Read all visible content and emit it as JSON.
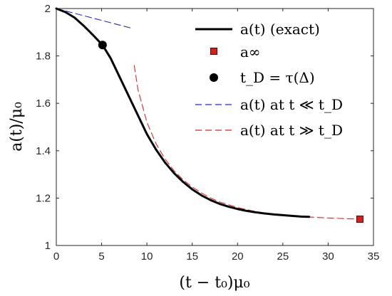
{
  "chart_data": {
    "type": "line",
    "xlabel": "(t − t₀)μ₀",
    "ylabel": "a(t)/μ₀",
    "xlim": [
      0,
      35
    ],
    "ylim": [
      1,
      2
    ],
    "x_ticks": [
      0,
      5,
      10,
      15,
      20,
      25,
      30,
      35
    ],
    "y_ticks": [
      1,
      1.2,
      1.4,
      1.6,
      1.8,
      2
    ],
    "grid": false,
    "legend_position": "top-right",
    "series": [
      {
        "name": "a(t) (exact)",
        "kind": "line",
        "color": "#000000",
        "style": "solid",
        "x": [
          0,
          1,
          2,
          3,
          4,
          5,
          5.1,
          6,
          7,
          8,
          9,
          10,
          11,
          12,
          13,
          14,
          15,
          16,
          17,
          18,
          19,
          20,
          21,
          22,
          23,
          24,
          25,
          26,
          27,
          27.9
        ],
        "y": [
          2.0,
          1.985,
          1.962,
          1.928,
          1.89,
          1.85,
          1.846,
          1.79,
          1.71,
          1.63,
          1.55,
          1.47,
          1.405,
          1.35,
          1.305,
          1.268,
          1.237,
          1.212,
          1.192,
          1.176,
          1.164,
          1.154,
          1.146,
          1.14,
          1.135,
          1.131,
          1.128,
          1.125,
          1.122,
          1.121
        ]
      },
      {
        "name": "a∞",
        "kind": "marker",
        "marker": "square",
        "color": "#d42020",
        "x": [
          33.5
        ],
        "y": [
          1.111
        ]
      },
      {
        "name": "t_D = τ(Δ)",
        "kind": "marker",
        "marker": "circle",
        "color": "#000000",
        "x": [
          5.1
        ],
        "y": [
          1.846
        ]
      },
      {
        "name": "a(t) at t ≪ t_D",
        "kind": "line",
        "color": "#1f28d6",
        "style": "dashed",
        "x": [
          0,
          8.5
        ],
        "y": [
          2.0,
          1.915
        ]
      },
      {
        "name": "a(t) at t ≫ t_D",
        "kind": "line",
        "color": "#e02424",
        "style": "dashed",
        "x": [
          8.6,
          9,
          10,
          11,
          12,
          13,
          14,
          15,
          16,
          17,
          18,
          20,
          22,
          24,
          26,
          28,
          30,
          32,
          33.5
        ],
        "y": [
          1.76,
          1.66,
          1.52,
          1.43,
          1.365,
          1.315,
          1.277,
          1.247,
          1.222,
          1.201,
          1.184,
          1.16,
          1.143,
          1.132,
          1.125,
          1.12,
          1.116,
          1.113,
          1.111
        ]
      }
    ]
  }
}
